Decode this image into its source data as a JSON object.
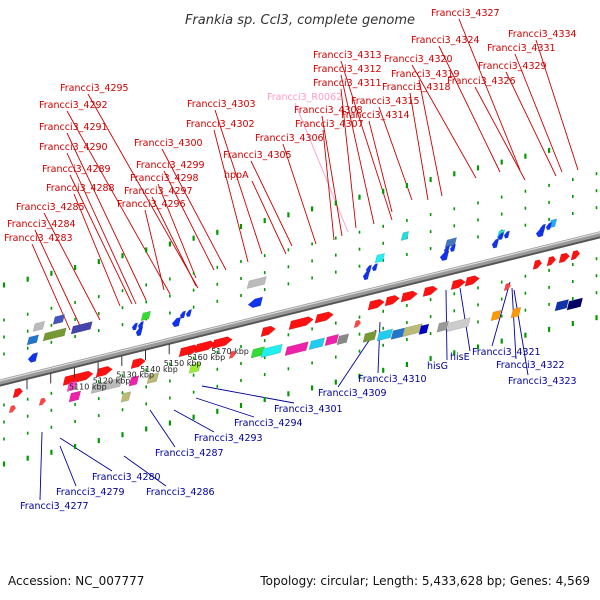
{
  "title": "Frankia sp. CcI3, complete genome",
  "footer": {
    "accession": "Accession: NC_007777",
    "summary": "Topology: circular; Length: 5,433,628 bp; Genes: 4,569"
  },
  "colors": {
    "top_label": "#cc0000",
    "rna_label": "#ff99cc",
    "bottom_label": "#000099",
    "backbone": "#999999",
    "tick": "#009900"
  },
  "scale": [
    {
      "label": "5110 kbp"
    },
    {
      "label": "5120 kbp"
    },
    {
      "label": "5130 kbp"
    },
    {
      "label": "5140 kbp"
    },
    {
      "label": "5150 kbp"
    },
    {
      "label": "5160 kbp"
    },
    {
      "label": "5170 kbp"
    }
  ],
  "top_labels": [
    {
      "text": "Francci3_4327"
    },
    {
      "text": "Francci3_4334"
    },
    {
      "text": "Francci3_4324"
    },
    {
      "text": "Francci3_4331"
    },
    {
      "text": "Francci3_4313"
    },
    {
      "text": "Francci3_4320"
    },
    {
      "text": "Francci3_4329"
    },
    {
      "text": "Francci3_4312"
    },
    {
      "text": "Francci3_4319"
    },
    {
      "text": "Francci3_4326"
    },
    {
      "text": "Francci3_4295"
    },
    {
      "text": "Francci3_4311"
    },
    {
      "text": "Francci3_4318"
    },
    {
      "text": "Francci3_R0062",
      "rna": true
    },
    {
      "text": "Francci3_4315"
    },
    {
      "text": "Francci3_4292"
    },
    {
      "text": "Francci3_4303"
    },
    {
      "text": "Francci3_4308"
    },
    {
      "text": "Francci3_4314"
    },
    {
      "text": "Francci3_4302"
    },
    {
      "text": "Francci3_4307"
    },
    {
      "text": "Francci3_4291"
    },
    {
      "text": "Francci3_4306"
    },
    {
      "text": "Francci3_4300"
    },
    {
      "text": "Francci3_4290"
    },
    {
      "text": "Francci3_4305"
    },
    {
      "text": "Francci3_4299"
    },
    {
      "text": "Francci3_4289"
    },
    {
      "text": "hppA"
    },
    {
      "text": "Francci3_4298"
    },
    {
      "text": "Francci3_4297"
    },
    {
      "text": "Francci3_4288"
    },
    {
      "text": "Francci3_4296"
    },
    {
      "text": "Francci3_4285"
    },
    {
      "text": "Francci3_4284"
    },
    {
      "text": "Francci3_4283"
    }
  ],
  "bottom_labels": [
    {
      "text": "hisG"
    },
    {
      "text": "hisE"
    },
    {
      "text": "Francci3_4321"
    },
    {
      "text": "Francci3_4322"
    },
    {
      "text": "Francci3_4323"
    },
    {
      "text": "Francci3_4310"
    },
    {
      "text": "Francci3_4309"
    },
    {
      "text": "Francci3_4301"
    },
    {
      "text": "Francci3_4294"
    },
    {
      "text": "Francci3_4293"
    },
    {
      "text": "Francci3_4287"
    },
    {
      "text": "Francci3_4280"
    },
    {
      "text": "Francci3_4286"
    },
    {
      "text": "Francci3_4279"
    },
    {
      "text": "Francci3_4277"
    }
  ]
}
